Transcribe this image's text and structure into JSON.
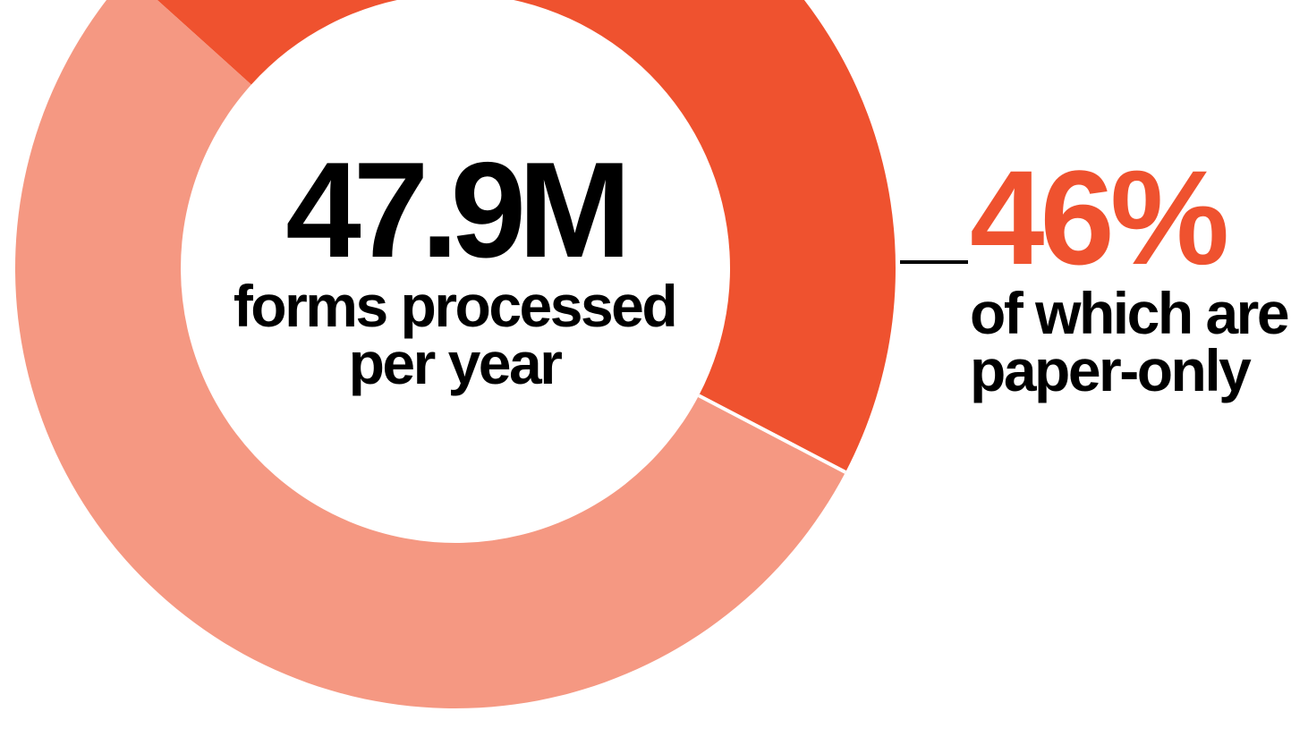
{
  "chart_data": {
    "type": "pie",
    "donut": true,
    "slices": [
      {
        "value": 46,
        "color": "#EF522F"
      },
      {
        "value": 54,
        "color": "#F59882"
      }
    ],
    "center": {
      "value": "47.9M",
      "caption_line1": "forms processed",
      "caption_line2": "per year"
    },
    "callout": {
      "value": "46%",
      "caption_line1": "of which are",
      "caption_line2": "paper-only"
    }
  },
  "colors": {
    "accent": "#EF522F",
    "accent_light": "#F59882",
    "text": "#000000",
    "background": "#FFFFFF"
  }
}
